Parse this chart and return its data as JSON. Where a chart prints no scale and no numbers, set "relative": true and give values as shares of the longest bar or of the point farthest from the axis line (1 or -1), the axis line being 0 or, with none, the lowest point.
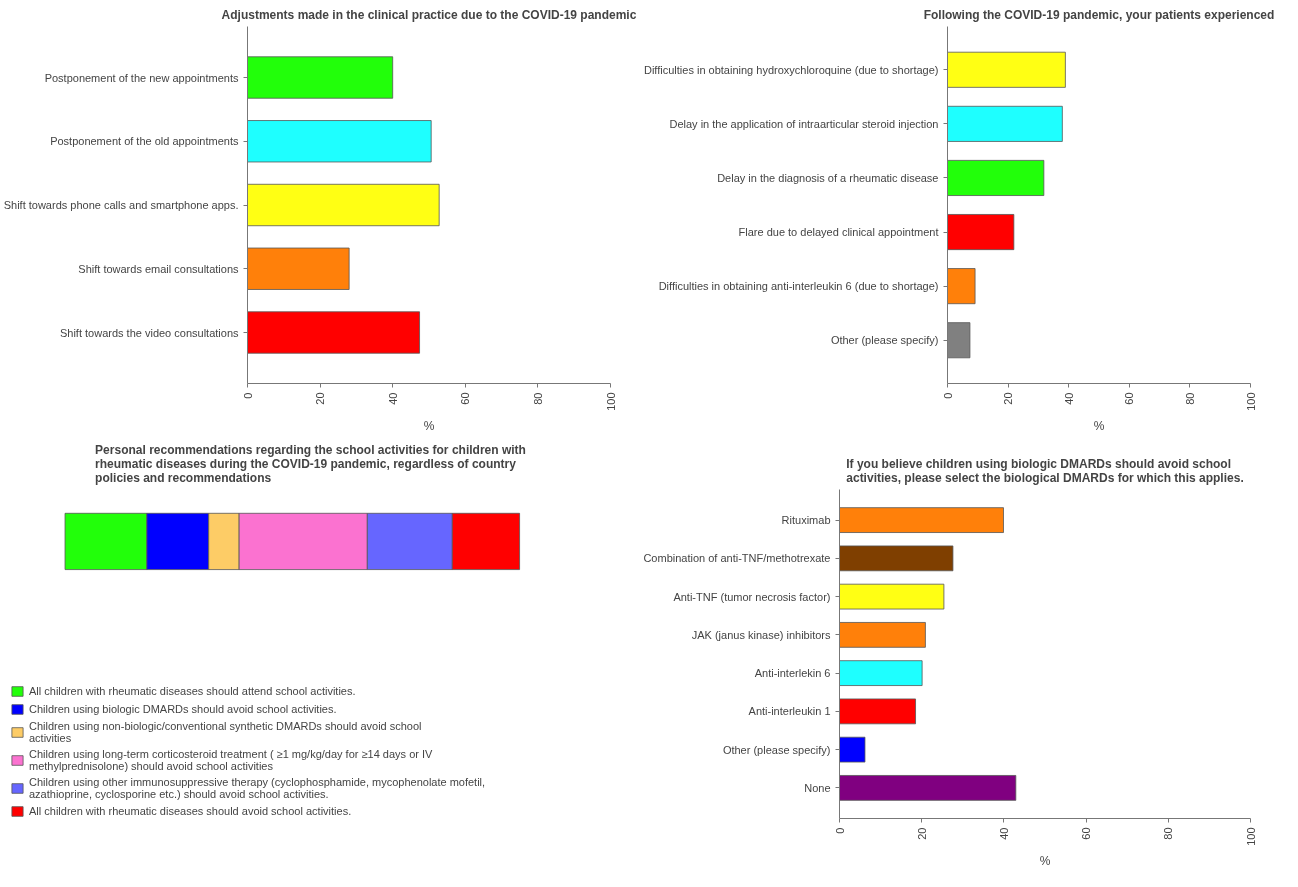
{
  "chart_data": [
    {
      "type": "bar",
      "orientation": "horizontal",
      "title": "Adjustments made in the clinical practice due to the COVID-19 pandemic",
      "categories": [
        "Postponement of the new appointments",
        "Postponement of the old appointments",
        "Shift towards phone calls and smartphone apps.",
        "Shift towards email consultations",
        "Shift towards the video consultations"
      ],
      "values": [
        40,
        50.6,
        52.8,
        28,
        47.4
      ],
      "colors": [
        "#22ff0a",
        "#1effff",
        "#ffff14",
        "#ff800a",
        "#ff0000"
      ],
      "xlim": [
        0,
        100
      ],
      "xticks": [
        0,
        20,
        40,
        60,
        80,
        100
      ],
      "xlabel": "%"
    },
    {
      "type": "bar",
      "orientation": "horizontal",
      "title": "Following the COVID-19 pandemic, your patients experienced",
      "categories": [
        "Difficulties in obtaining hydroxychloroquine (due to shortage)",
        "Delay in the application of intraarticular steroid injection",
        "Delay in the diagnosis of a rheumatic disease",
        "Flare due to delayed clinical appointment",
        "Difficulties in obtaining anti-interleukin 6 (due to shortage)",
        "Other (please specify)"
      ],
      "values": [
        38.9,
        37.9,
        31.8,
        21.9,
        9.1,
        7.4
      ],
      "colors": [
        "#ffff14",
        "#1effff",
        "#22ff0a",
        "#ff0000",
        "#ff800a",
        "#808080"
      ],
      "xlim": [
        0,
        100
      ],
      "xticks": [
        0,
        20,
        40,
        60,
        80,
        100
      ],
      "xlabel": "%"
    },
    {
      "type": "bar",
      "orientation": "horizontal",
      "stacked": true,
      "relative": true,
      "title": "Personal recommendations regarding the school activities for children with rheumatic diseases during the COVID-19 pandemic, regardless of country policies and recommendations",
      "categories": [
        null
      ],
      "legend": "bottom",
      "series": [
        {
          "name": "All children with rheumatic diseases should attend school activities.",
          "color": "#22ff0a",
          "values": [
            0.18
          ]
        },
        {
          "name": "Children using biologic DMARDs should avoid school activities.",
          "color": "#0000ff",
          "values": [
            0.136
          ]
        },
        {
          "name": "Children using non-biologic/conventional synthetic DMARDs should avoid school  activities",
          "color": "#fdcc66",
          "values": [
            0.067
          ]
        },
        {
          "name": "Children using long-term corticosteroid treatment ( ≥1 mg/kg/day for ≥14 days or IV methylprednisolone) should avoid school activities",
          "color": "#fb72d0",
          "values": [
            0.282
          ]
        },
        {
          "name": "Children using other immunosuppressive therapy (cyclophosphamide, mycophenolate mofetil, azathioprine, cyclosporine etc.) should avoid school activities.",
          "color": "#6666ff",
          "values": [
            0.187
          ]
        },
        {
          "name": "All children with rheumatic diseases should avoid school activities.",
          "color": "#ff0000",
          "values": [
            0.148
          ]
        }
      ]
    },
    {
      "type": "bar",
      "orientation": "horizontal",
      "title": "If you believe children using biologic DMARDs should avoid school activities, please select the biological DMARDs for which this applies.",
      "categories": [
        "Rituximab",
        "Combination of anti-TNF/methotrexate",
        "Anti-TNF (tumor necrosis factor)",
        "JAK (janus kinase) inhibitors",
        "Anti-interlekin 6",
        "Anti-interleukin 1",
        "Other (please specify)",
        "None"
      ],
      "values": [
        39.9,
        27.6,
        25.4,
        20.9,
        20.1,
        18.5,
        6.2,
        42.9
      ],
      "colors": [
        "#ff800a",
        "#7f3f00",
        "#ffff14",
        "#ff800a",
        "#1effff",
        "#ff0000",
        "#0000ff",
        "#800080"
      ],
      "xlim": [
        0,
        100
      ],
      "xticks": [
        0,
        20,
        40,
        60,
        80,
        100
      ],
      "xlabel": "%"
    }
  ]
}
